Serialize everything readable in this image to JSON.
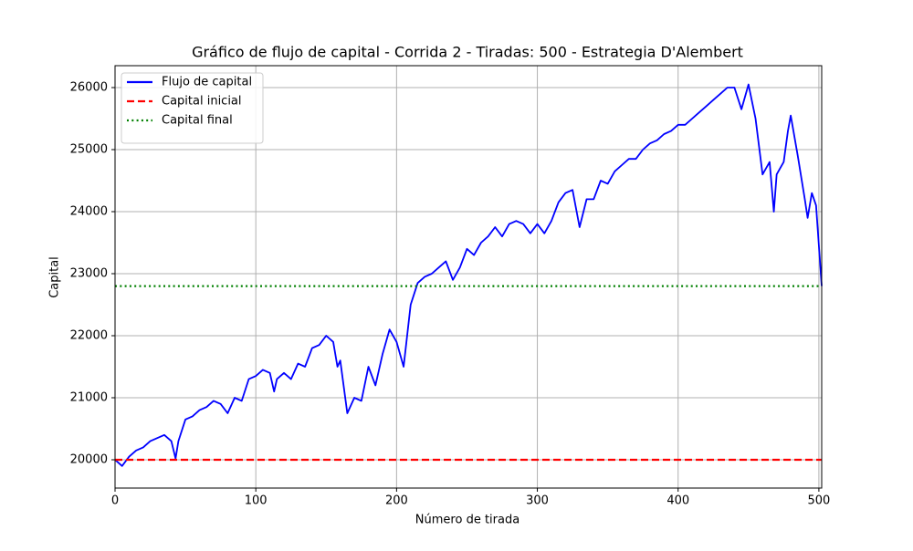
{
  "chart_data": {
    "type": "line",
    "title": "Gráfico de flujo de capital - Corrida 2 - Tiradas: 500 - Estrategia D'Alembert",
    "xlabel": "Número de tirada",
    "ylabel": "Capital",
    "xlim": [
      0,
      502
    ],
    "ylim": [
      19544,
      26353
    ],
    "xticks": [
      0,
      100,
      200,
      300,
      400,
      500
    ],
    "yticks": [
      20000,
      21000,
      22000,
      23000,
      24000,
      25000,
      26000
    ],
    "grid": true,
    "legend": "upper-left",
    "series": [
      {
        "name": "Flujo de capital",
        "color": "#0000ff",
        "style": "solid",
        "x": [
          0,
          5,
          10,
          15,
          20,
          25,
          30,
          35,
          40,
          43,
          45,
          50,
          55,
          60,
          65,
          70,
          75,
          80,
          85,
          90,
          95,
          100,
          105,
          110,
          113,
          115,
          120,
          125,
          130,
          135,
          140,
          145,
          150,
          155,
          158,
          160,
          165,
          170,
          175,
          180,
          185,
          190,
          195,
          200,
          205,
          210,
          215,
          220,
          225,
          230,
          235,
          240,
          245,
          250,
          255,
          260,
          265,
          270,
          275,
          280,
          285,
          290,
          295,
          300,
          305,
          310,
          315,
          320,
          325,
          330,
          335,
          340,
          345,
          350,
          355,
          360,
          365,
          370,
          375,
          380,
          385,
          390,
          395,
          400,
          405,
          410,
          415,
          420,
          425,
          430,
          435,
          440,
          445,
          450,
          455,
          460,
          465,
          468,
          470,
          475,
          478,
          480,
          485,
          490,
          492,
          495,
          498,
          502
        ],
        "values": [
          20000,
          19900,
          20050,
          20150,
          20200,
          20300,
          20350,
          20400,
          20300,
          20020,
          20300,
          20650,
          20700,
          20800,
          20850,
          20950,
          20900,
          20750,
          21000,
          20950,
          21300,
          21350,
          21450,
          21400,
          21100,
          21300,
          21400,
          21300,
          21550,
          21500,
          21800,
          21850,
          22000,
          21900,
          21500,
          21600,
          20750,
          21000,
          20950,
          21500,
          21200,
          21700,
          22100,
          21900,
          21500,
          22500,
          22850,
          22950,
          23000,
          23100,
          23200,
          22900,
          23100,
          23400,
          23300,
          23500,
          23600,
          23750,
          23600,
          23800,
          23850,
          23800,
          23650,
          23800,
          23650,
          23850,
          24150,
          24300,
          24350,
          23750,
          24200,
          24200,
          24500,
          24450,
          24650,
          24750,
          24850,
          24850,
          25000,
          25100,
          25150,
          25250,
          25300,
          25400,
          25400,
          25500,
          25600,
          25700,
          25800,
          25900,
          26000,
          26000,
          25650,
          26050,
          25500,
          24600,
          24800,
          24000,
          24600,
          24800,
          25300,
          25550,
          24900,
          24200,
          23900,
          24300,
          24100,
          22800
        ]
      },
      {
        "name": "Capital inicial",
        "color": "#ff0000",
        "style": "dashed",
        "values": [
          20000
        ]
      },
      {
        "name": "Capital final",
        "color": "#008000",
        "style": "dotted",
        "values": [
          22800
        ]
      }
    ]
  }
}
